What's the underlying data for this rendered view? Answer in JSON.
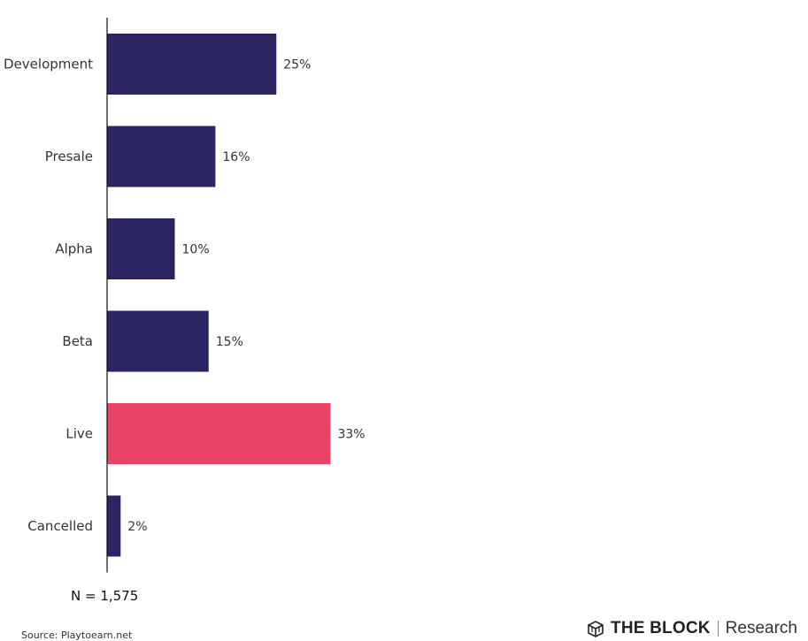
{
  "chart_data": {
    "type": "bar",
    "orientation": "horizontal",
    "title": "",
    "xlabel": "",
    "ylabel": "",
    "categories": [
      "Development",
      "Presale",
      "Alpha",
      "Beta",
      "Live",
      "Cancelled"
    ],
    "values": [
      25,
      16,
      10,
      15,
      33,
      2
    ],
    "value_labels": [
      "25%",
      "16%",
      "10%",
      "15%",
      "33%",
      "2%"
    ],
    "unit": "%",
    "bar_colors": [
      "#2a2560",
      "#2a2560",
      "#2a2560",
      "#2a2560",
      "#e84468",
      "#2a2560"
    ],
    "highlight_category": "Live",
    "grid": false,
    "legend": "none"
  },
  "annotation": {
    "sample_size": "N = 1,575"
  },
  "footer": {
    "source": "Source: Playtoearn.net",
    "brand": "THE BLOCK",
    "brand_suffix": "Research",
    "logo_icon": "cube-icon"
  }
}
